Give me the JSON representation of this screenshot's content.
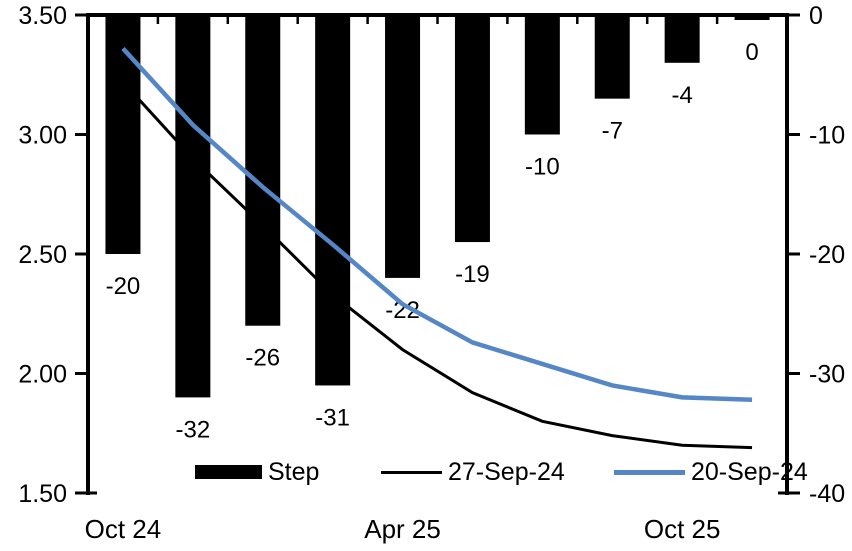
{
  "chart_data": {
    "type": "bar",
    "subtype": "combo-bar-line",
    "title": "",
    "x_slots": 10,
    "x_tick_labels": [
      {
        "slot": 0,
        "label": "Oct 24"
      },
      {
        "slot": 4,
        "label": "Apr 25"
      },
      {
        "slot": 8,
        "label": "Oct 25"
      }
    ],
    "left_axis": {
      "min": 1.5,
      "max": 3.5,
      "ticks": [
        {
          "v": 3.5,
          "label": "3.50"
        },
        {
          "v": 3.0,
          "label": "3.00"
        },
        {
          "v": 2.5,
          "label": "2.50"
        },
        {
          "v": 2.0,
          "label": "2.00"
        },
        {
          "v": 1.5,
          "label": "1.50"
        }
      ]
    },
    "right_axis": {
      "min": -40,
      "max": 0,
      "ticks": [
        {
          "v": 0,
          "label": "0"
        },
        {
          "v": -10,
          "label": "-10"
        },
        {
          "v": -20,
          "label": "-20"
        },
        {
          "v": -30,
          "label": "-30"
        },
        {
          "v": -40,
          "label": "-40"
        }
      ]
    },
    "bars": {
      "name": "Step",
      "axis": "right",
      "color": "#000000",
      "values": [
        -20,
        -32,
        -26,
        -31,
        -22,
        -19,
        -10,
        -7,
        -4,
        0
      ],
      "labels": [
        "-20",
        "-32",
        "-26",
        "-31",
        "-22",
        "-19",
        "-10",
        "-7",
        "-4",
        "0"
      ]
    },
    "series": [
      {
        "name": "27-Sep-24",
        "axis": "left",
        "color": "#000000",
        "stroke_width": 3,
        "values": [
          3.22,
          2.9,
          2.62,
          2.33,
          2.1,
          1.92,
          1.8,
          1.74,
          1.7,
          1.69
        ]
      },
      {
        "name": "20-Sep-24",
        "axis": "left",
        "color": "#5586C6",
        "stroke_width": 4.5,
        "values": [
          3.36,
          3.04,
          2.78,
          2.54,
          2.29,
          2.13,
          2.04,
          1.95,
          1.9,
          1.89
        ]
      }
    ],
    "grid": false,
    "legend": {
      "position": "bottom",
      "items": [
        {
          "label": "Step",
          "swatch": "bar",
          "color": "#000000"
        },
        {
          "label": "27-Sep-24",
          "swatch": "line",
          "color": "#000000"
        },
        {
          "label": "20-Sep-24",
          "swatch": "line",
          "color": "#5586C6"
        }
      ]
    }
  }
}
